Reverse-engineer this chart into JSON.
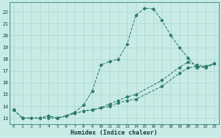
{
  "xlabel": "Humidex (Indice chaleur)",
  "xlim": [
    -0.5,
    23.5
  ],
  "ylim": [
    12.5,
    22.8
  ],
  "xticks": [
    0,
    1,
    2,
    3,
    4,
    5,
    6,
    7,
    8,
    9,
    10,
    11,
    12,
    13,
    14,
    15,
    16,
    17,
    18,
    19,
    20,
    21,
    22,
    23
  ],
  "xtick_labels": [
    "0",
    "1",
    "2",
    "3",
    "4",
    "5",
    "6",
    "7",
    "8",
    "9",
    "10",
    "11",
    "12",
    "13",
    "14",
    "15",
    "16",
    "17",
    "18",
    "19",
    "20",
    "21",
    "22",
    "23"
  ],
  "yticks": [
    13,
    14,
    15,
    16,
    17,
    18,
    19,
    20,
    21,
    22
  ],
  "bg_color": "#c8ebe6",
  "grid_color": "#b0d8d2",
  "line_color": "#2d7a70",
  "line1_x": [
    0,
    1,
    2,
    3,
    4,
    5,
    6,
    7,
    8,
    9,
    10,
    11,
    12,
    13,
    14,
    15,
    16,
    17,
    18,
    19,
    20,
    21,
    22,
    23
  ],
  "line1_y": [
    13.7,
    13.0,
    13.0,
    13.0,
    13.0,
    13.0,
    13.2,
    13.5,
    14.1,
    15.3,
    17.5,
    17.8,
    18.0,
    19.25,
    21.7,
    22.3,
    22.25,
    21.3,
    20.0,
    19.0,
    18.1,
    17.25,
    17.4,
    17.6
  ],
  "line2_x": [
    0,
    1,
    3,
    4,
    5,
    7,
    8,
    9,
    10,
    11,
    12,
    13,
    14,
    17,
    19,
    20,
    21,
    22,
    23
  ],
  "line2_y": [
    13.7,
    13.0,
    13.0,
    13.2,
    13.0,
    13.4,
    13.6,
    13.7,
    13.9,
    14.2,
    14.5,
    14.8,
    15.0,
    16.2,
    17.3,
    17.75,
    17.5,
    17.4,
    17.6
  ],
  "line3_x": [
    0,
    1,
    3,
    4,
    5,
    7,
    8,
    9,
    11,
    12,
    13,
    14,
    17,
    19,
    20,
    21,
    22,
    23
  ],
  "line3_y": [
    13.7,
    13.0,
    13.0,
    13.2,
    13.0,
    13.4,
    13.6,
    13.7,
    14.0,
    14.3,
    14.5,
    14.6,
    15.7,
    16.8,
    17.25,
    17.4,
    17.25,
    17.6
  ]
}
